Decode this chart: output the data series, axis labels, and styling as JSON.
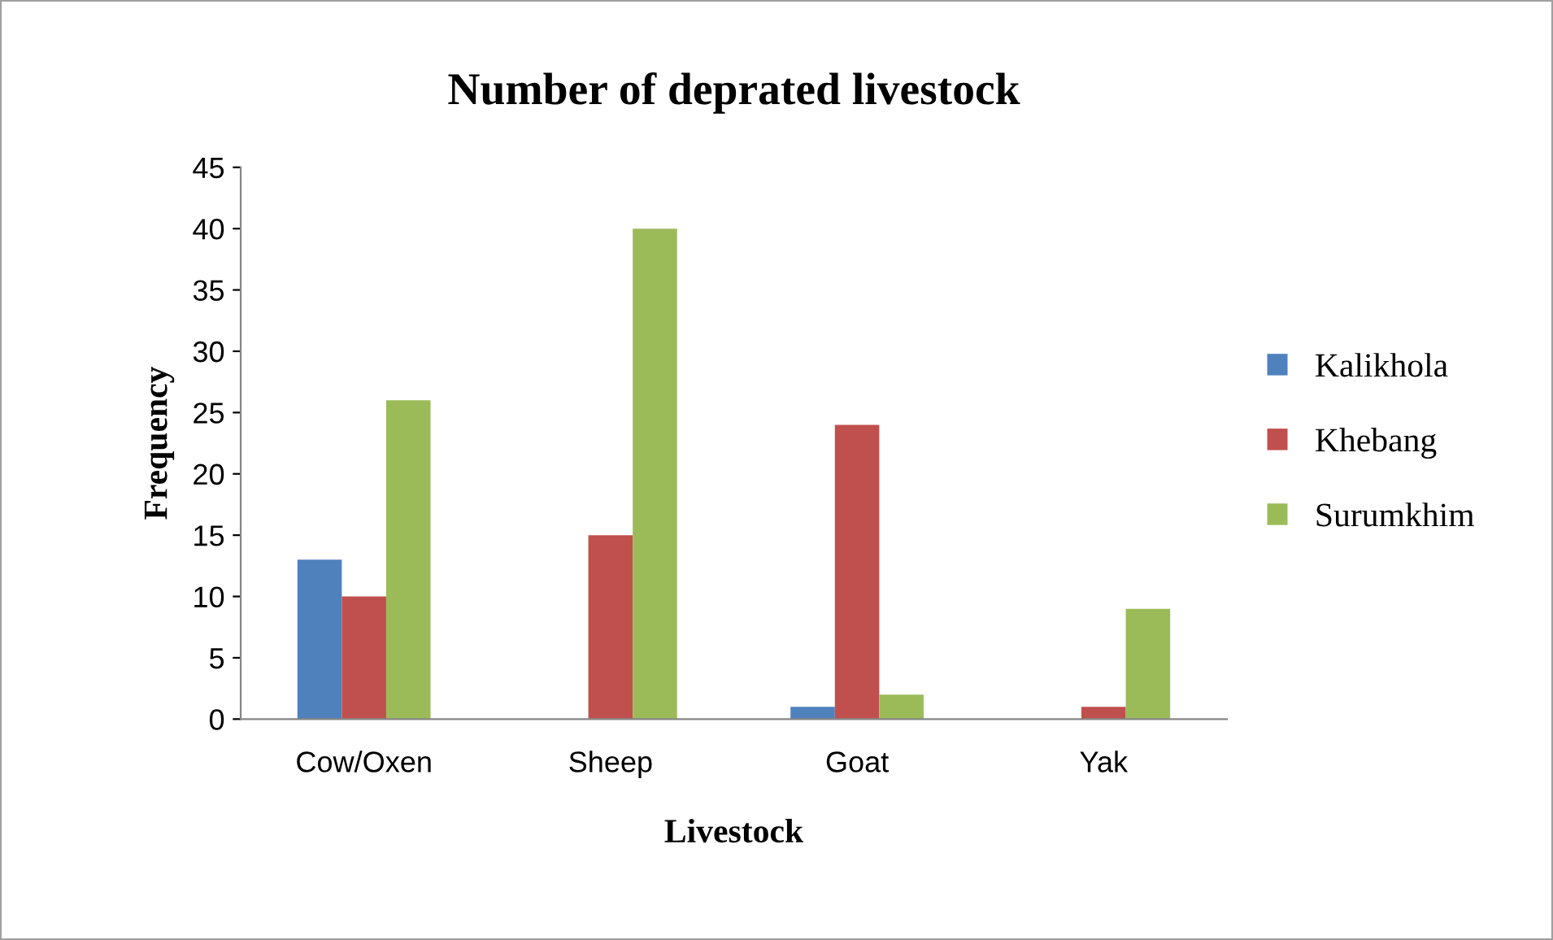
{
  "chart_data": {
    "type": "bar",
    "title": "Number of deprated livestock",
    "xlabel": "Livestock",
    "ylabel": "Frequency",
    "categories": [
      "Cow/Oxen",
      "Sheep",
      "Goat",
      "Yak"
    ],
    "series": [
      {
        "name": "Kalikhola",
        "color": "#4f81bd",
        "values": [
          13,
          0,
          1,
          0
        ]
      },
      {
        "name": "Khebang",
        "color": "#c0504d",
        "values": [
          10,
          15,
          24,
          1
        ]
      },
      {
        "name": "Surumkhim",
        "color": "#9bbb59",
        "values": [
          26,
          40,
          2,
          9
        ]
      }
    ],
    "ylim": [
      0,
      45
    ],
    "yticks": [
      0,
      5,
      10,
      15,
      20,
      25,
      30,
      35,
      40,
      45
    ],
    "grid": false,
    "legend": "right"
  }
}
